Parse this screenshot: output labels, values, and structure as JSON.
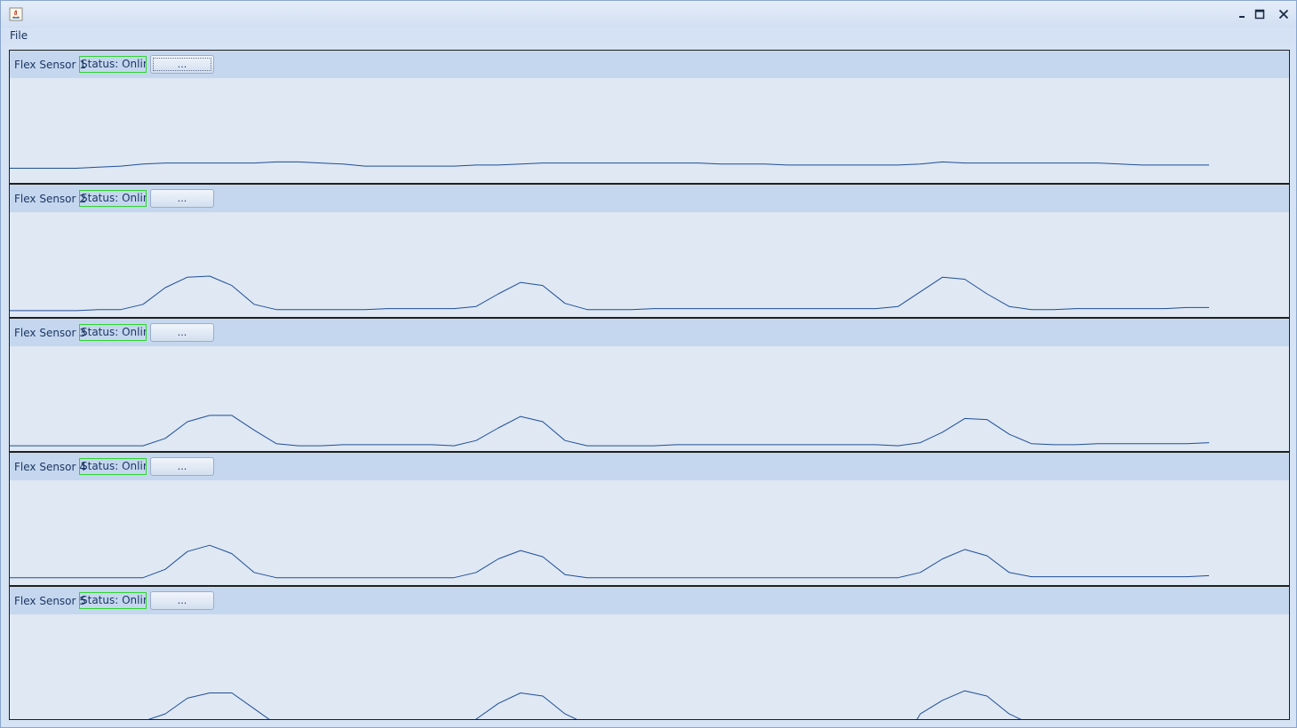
{
  "window": {
    "menu": {
      "file_label": "File"
    },
    "controls": [
      "minimize-icon",
      "maximize-icon",
      "close-icon"
    ]
  },
  "colors": {
    "line": "#1f4e96",
    "status_border": "#2fd52f",
    "header_bg": "#c5d7ee",
    "plot_bg": "#dfe8f3"
  },
  "sensors": [
    {
      "label": "Flex Sensor 1",
      "status": "Status: Online",
      "button_label": "...",
      "focused": true,
      "signal": [
        0.14,
        0.14,
        0.14,
        0.14,
        0.15,
        0.16,
        0.18,
        0.19,
        0.19,
        0.19,
        0.19,
        0.19,
        0.2,
        0.2,
        0.19,
        0.18,
        0.16,
        0.16,
        0.16,
        0.16,
        0.16,
        0.17,
        0.17,
        0.18,
        0.19,
        0.19,
        0.19,
        0.19,
        0.19,
        0.19,
        0.19,
        0.19,
        0.18,
        0.18,
        0.18,
        0.17,
        0.17,
        0.17,
        0.17,
        0.17,
        0.17,
        0.18,
        0.2,
        0.19,
        0.19,
        0.19,
        0.19,
        0.19,
        0.19,
        0.19,
        0.18,
        0.17,
        0.17,
        0.17,
        0.17
      ]
    },
    {
      "label": "Flex Sensor 2",
      "status": "Status: Online",
      "button_label": "...",
      "focused": false,
      "signal": [
        0.06,
        0.06,
        0.06,
        0.06,
        0.07,
        0.07,
        0.12,
        0.28,
        0.38,
        0.39,
        0.3,
        0.12,
        0.07,
        0.07,
        0.07,
        0.07,
        0.07,
        0.08,
        0.08,
        0.08,
        0.08,
        0.1,
        0.22,
        0.33,
        0.3,
        0.13,
        0.07,
        0.07,
        0.07,
        0.08,
        0.08,
        0.08,
        0.08,
        0.08,
        0.08,
        0.08,
        0.08,
        0.08,
        0.08,
        0.08,
        0.1,
        0.24,
        0.38,
        0.36,
        0.22,
        0.1,
        0.07,
        0.07,
        0.08,
        0.08,
        0.08,
        0.08,
        0.08,
        0.09,
        0.09
      ]
    },
    {
      "label": "Flex Sensor 3",
      "status": "Status: Online",
      "button_label": "...",
      "focused": false,
      "signal": [
        0.05,
        0.05,
        0.05,
        0.05,
        0.05,
        0.05,
        0.05,
        0.12,
        0.28,
        0.34,
        0.34,
        0.2,
        0.07,
        0.05,
        0.05,
        0.06,
        0.06,
        0.06,
        0.06,
        0.06,
        0.05,
        0.1,
        0.22,
        0.33,
        0.28,
        0.1,
        0.05,
        0.05,
        0.05,
        0.05,
        0.06,
        0.06,
        0.06,
        0.06,
        0.06,
        0.06,
        0.06,
        0.06,
        0.06,
        0.06,
        0.05,
        0.08,
        0.18,
        0.31,
        0.3,
        0.16,
        0.07,
        0.06,
        0.06,
        0.07,
        0.07,
        0.07,
        0.07,
        0.07,
        0.08
      ]
    },
    {
      "label": "Flex Sensor 4",
      "status": "Status: Online",
      "button_label": "...",
      "focused": false,
      "signal": [
        0.07,
        0.07,
        0.07,
        0.07,
        0.07,
        0.07,
        0.07,
        0.15,
        0.32,
        0.38,
        0.3,
        0.12,
        0.07,
        0.07,
        0.07,
        0.07,
        0.07,
        0.07,
        0.07,
        0.07,
        0.07,
        0.12,
        0.25,
        0.33,
        0.27,
        0.1,
        0.07,
        0.07,
        0.07,
        0.07,
        0.07,
        0.07,
        0.07,
        0.07,
        0.07,
        0.07,
        0.07,
        0.07,
        0.07,
        0.07,
        0.07,
        0.12,
        0.25,
        0.34,
        0.28,
        0.12,
        0.08,
        0.08,
        0.08,
        0.08,
        0.08,
        0.08,
        0.08,
        0.08,
        0.09
      ]
    },
    {
      "label": "Flex Sensor 5",
      "status": "Status: Online",
      "button_label": "...",
      "focused": false,
      "signal": [
        -0.3,
        -0.3,
        -0.3,
        -0.3,
        -0.3,
        -0.3,
        -0.02,
        0.05,
        0.2,
        0.25,
        0.25,
        0.1,
        -0.05,
        -0.3,
        -0.3,
        -0.3,
        -0.3,
        -0.3,
        -0.3,
        -0.3,
        -0.3,
        0.0,
        0.15,
        0.25,
        0.22,
        0.05,
        -0.05,
        -0.3,
        -0.3,
        -0.3,
        -0.3,
        -0.3,
        -0.3,
        -0.3,
        -0.3,
        -0.3,
        -0.3,
        -0.3,
        -0.3,
        -0.3,
        -0.3,
        0.05,
        0.18,
        0.27,
        0.22,
        0.05,
        -0.05,
        -0.3,
        -0.3,
        -0.3,
        -0.3,
        -0.3,
        -0.3,
        -0.3,
        -0.3
      ]
    }
  ]
}
